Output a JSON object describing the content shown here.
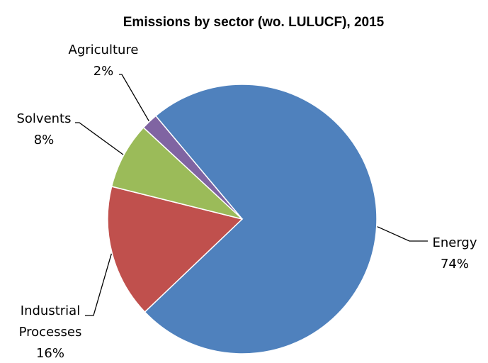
{
  "chart_data": {
    "type": "pie",
    "title": "Emissions by sector (wo. LULUCF), 2015",
    "slices": [
      {
        "label": "Energy",
        "value": 74,
        "display": "74%",
        "color": "#4f81bd"
      },
      {
        "label": "Industrial Processes",
        "label_lines": [
          "Industrial",
          "Processes"
        ],
        "value": 16,
        "display": "16%",
        "color": "#c0504d"
      },
      {
        "label": "Solvents",
        "value": 8,
        "display": "8%",
        "color": "#9bbb59"
      },
      {
        "label": "Agriculture",
        "value": 2,
        "display": "2%",
        "color": "#8064a2"
      }
    ],
    "legend": "none",
    "data_labels": "outside with leader lines"
  }
}
